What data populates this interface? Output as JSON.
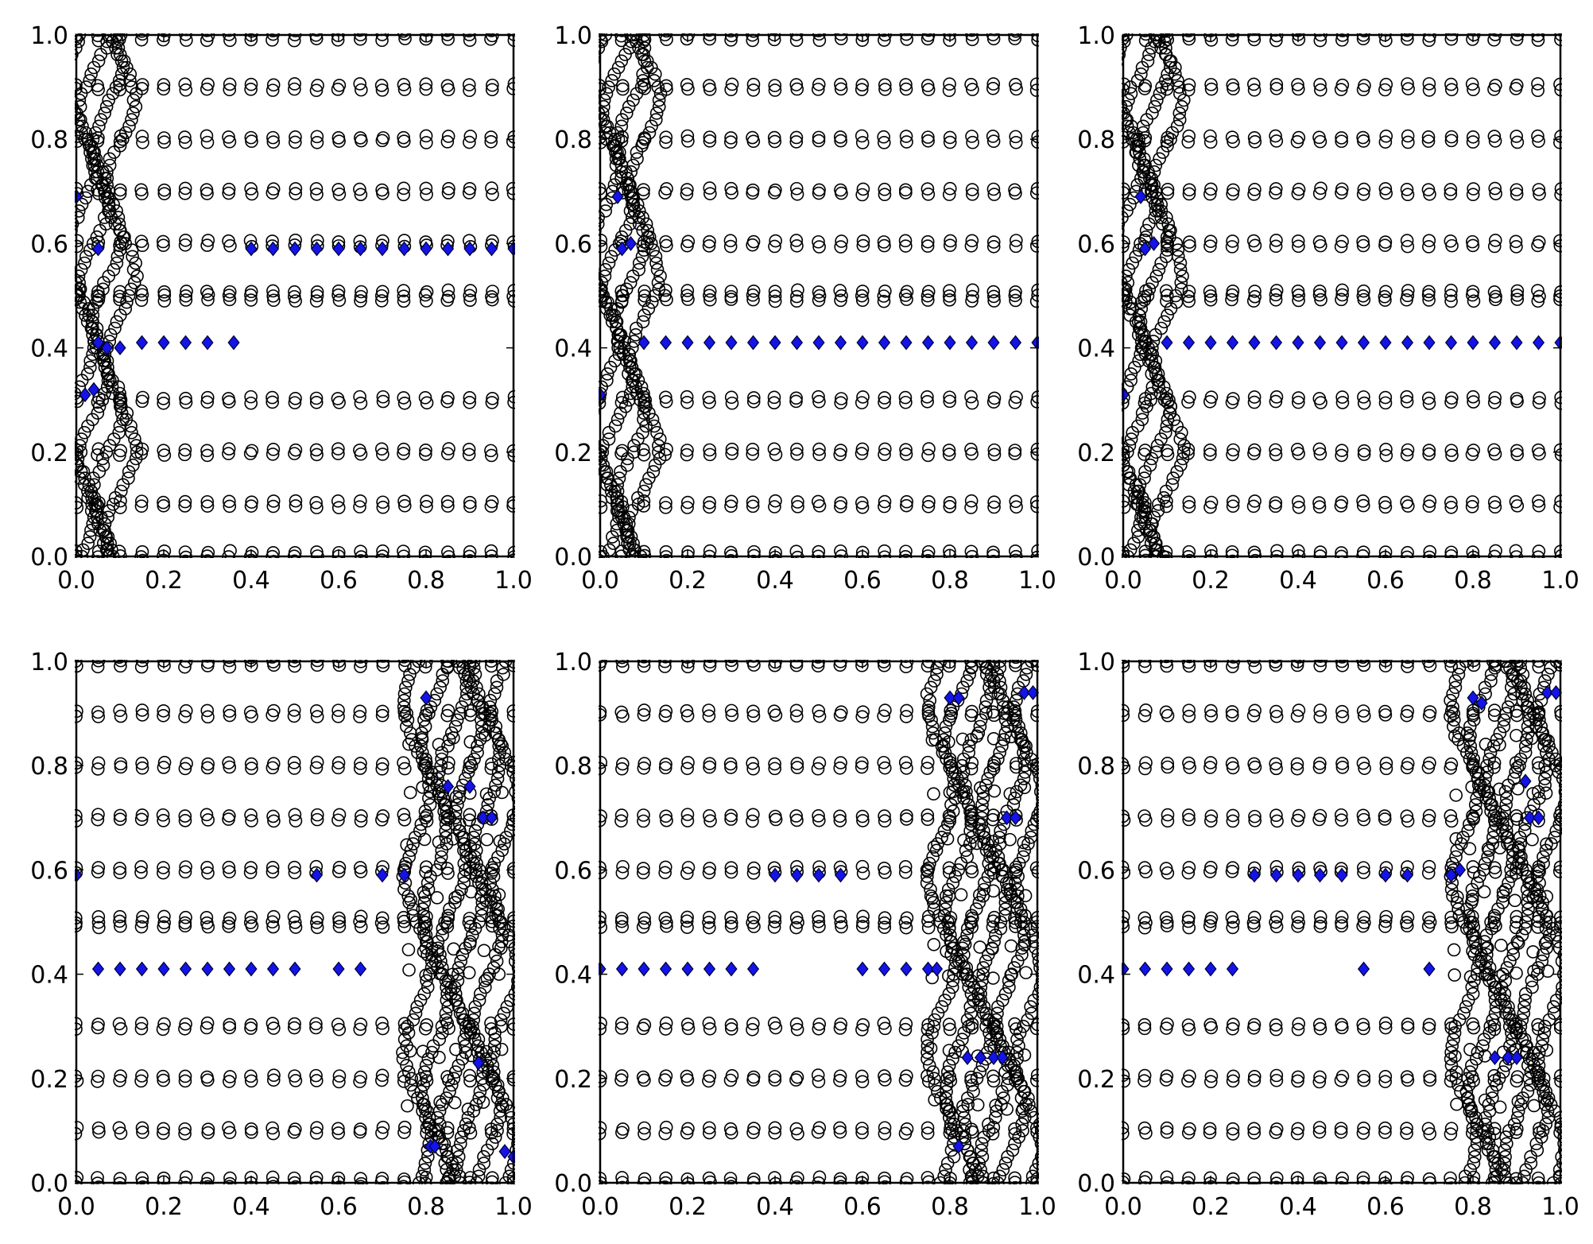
{
  "figure": {
    "layout": {
      "rows": 2,
      "cols": 3
    },
    "marker_styles": {
      "ring": "open-circle",
      "highlight": "diamond"
    },
    "colors": {
      "axes": "#000000",
      "ring_edge": "#000000",
      "highlight_fill": "#1414e6",
      "highlight_edge": "#000033",
      "background": "#ffffff"
    }
  },
  "chart_data": [
    {
      "type": "scatter",
      "title": "",
      "xlabel": "",
      "ylabel": "",
      "xlim": [
        0,
        1
      ],
      "ylim": [
        0,
        1
      ],
      "grid": false,
      "legend": "none",
      "x_ticks": [
        "0.0",
        "0.2",
        "0.4",
        "0.6",
        "0.8",
        "1.0"
      ],
      "y_ticks": [
        "0.0",
        "0.2",
        "0.4",
        "0.6",
        "0.8",
        "1.0"
      ],
      "circle_rows": [
        0.0,
        0.1,
        0.2,
        0.3,
        0.5,
        0.6,
        0.7,
        0.8,
        0.9,
        1.0
      ],
      "circle_dense_x": "left",
      "highlight_points": [
        [
          0.0,
          0.69
        ],
        [
          0.05,
          0.59
        ],
        [
          0.02,
          0.31
        ],
        [
          0.04,
          0.32
        ],
        [
          0.05,
          0.41
        ],
        [
          0.07,
          0.4
        ],
        [
          0.1,
          0.4
        ],
        [
          0.15,
          0.41
        ],
        [
          0.2,
          0.41
        ],
        [
          0.25,
          0.41
        ],
        [
          0.3,
          0.41
        ],
        [
          0.36,
          0.41
        ],
        [
          0.4,
          0.59
        ],
        [
          0.45,
          0.59
        ],
        [
          0.5,
          0.59
        ],
        [
          0.55,
          0.59
        ],
        [
          0.6,
          0.59
        ],
        [
          0.65,
          0.59
        ],
        [
          0.7,
          0.59
        ],
        [
          0.75,
          0.59
        ],
        [
          0.8,
          0.59
        ],
        [
          0.85,
          0.59
        ],
        [
          0.9,
          0.59
        ],
        [
          0.95,
          0.59
        ],
        [
          1.0,
          0.59
        ]
      ]
    },
    {
      "type": "scatter",
      "title": "",
      "xlabel": "",
      "ylabel": "",
      "xlim": [
        0,
        1
      ],
      "ylim": [
        0,
        1
      ],
      "grid": false,
      "legend": "none",
      "x_ticks": [
        "0.0",
        "0.2",
        "0.4",
        "0.6",
        "0.8",
        "1.0"
      ],
      "y_ticks": [
        "0.0",
        "0.2",
        "0.4",
        "0.6",
        "0.8",
        "1.0"
      ],
      "circle_rows": [
        0.0,
        0.1,
        0.2,
        0.3,
        0.5,
        0.6,
        0.7,
        0.8,
        0.9,
        1.0
      ],
      "circle_dense_x": "left",
      "highlight_points": [
        [
          0.0,
          0.31
        ],
        [
          0.04,
          0.69
        ],
        [
          0.05,
          0.59
        ],
        [
          0.07,
          0.6
        ],
        [
          0.1,
          0.41
        ],
        [
          0.15,
          0.41
        ],
        [
          0.2,
          0.41
        ],
        [
          0.25,
          0.41
        ],
        [
          0.3,
          0.41
        ],
        [
          0.35,
          0.41
        ],
        [
          0.4,
          0.41
        ],
        [
          0.45,
          0.41
        ],
        [
          0.5,
          0.41
        ],
        [
          0.55,
          0.41
        ],
        [
          0.6,
          0.41
        ],
        [
          0.65,
          0.41
        ],
        [
          0.7,
          0.41
        ],
        [
          0.75,
          0.41
        ],
        [
          0.8,
          0.41
        ],
        [
          0.85,
          0.41
        ],
        [
          0.9,
          0.41
        ],
        [
          0.95,
          0.41
        ],
        [
          1.0,
          0.41
        ]
      ]
    },
    {
      "type": "scatter",
      "title": "",
      "xlabel": "",
      "ylabel": "",
      "xlim": [
        0,
        1
      ],
      "ylim": [
        0,
        1
      ],
      "grid": false,
      "legend": "none",
      "x_ticks": [
        "0.0",
        "0.2",
        "0.4",
        "0.6",
        "0.8",
        "1.0"
      ],
      "y_ticks": [
        "0.0",
        "0.2",
        "0.4",
        "0.6",
        "0.8",
        "1.0"
      ],
      "circle_rows": [
        0.0,
        0.1,
        0.2,
        0.3,
        0.5,
        0.6,
        0.7,
        0.8,
        0.9,
        1.0
      ],
      "circle_dense_x": "left",
      "highlight_points": [
        [
          0.0,
          0.31
        ],
        [
          0.04,
          0.69
        ],
        [
          0.05,
          0.59
        ],
        [
          0.07,
          0.6
        ],
        [
          0.1,
          0.41
        ],
        [
          0.15,
          0.41
        ],
        [
          0.2,
          0.41
        ],
        [
          0.25,
          0.41
        ],
        [
          0.3,
          0.41
        ],
        [
          0.35,
          0.41
        ],
        [
          0.4,
          0.41
        ],
        [
          0.45,
          0.41
        ],
        [
          0.5,
          0.41
        ],
        [
          0.55,
          0.41
        ],
        [
          0.6,
          0.41
        ],
        [
          0.65,
          0.41
        ],
        [
          0.7,
          0.41
        ],
        [
          0.75,
          0.41
        ],
        [
          0.8,
          0.41
        ],
        [
          0.85,
          0.41
        ],
        [
          0.9,
          0.41
        ],
        [
          0.95,
          0.41
        ],
        [
          1.0,
          0.41
        ]
      ]
    },
    {
      "type": "scatter",
      "title": "",
      "xlabel": "",
      "ylabel": "",
      "xlim": [
        0,
        1
      ],
      "ylim": [
        0,
        1
      ],
      "grid": false,
      "legend": "none",
      "x_ticks": [
        "0.0",
        "0.2",
        "0.4",
        "0.6",
        "0.8",
        "1.0"
      ],
      "y_ticks": [
        "0.0",
        "0.2",
        "0.4",
        "0.6",
        "0.8",
        "1.0"
      ],
      "circle_rows": [
        0.0,
        0.1,
        0.2,
        0.3,
        0.5,
        0.6,
        0.7,
        0.8,
        0.9,
        1.0
      ],
      "circle_dense_x": "right",
      "highlight_points": [
        [
          0.0,
          0.59
        ],
        [
          0.05,
          0.41
        ],
        [
          0.1,
          0.41
        ],
        [
          0.15,
          0.41
        ],
        [
          0.2,
          0.41
        ],
        [
          0.25,
          0.41
        ],
        [
          0.3,
          0.41
        ],
        [
          0.35,
          0.41
        ],
        [
          0.4,
          0.41
        ],
        [
          0.45,
          0.41
        ],
        [
          0.5,
          0.41
        ],
        [
          0.55,
          0.59
        ],
        [
          0.6,
          0.41
        ],
        [
          0.65,
          0.41
        ],
        [
          0.7,
          0.59
        ],
        [
          0.75,
          0.59
        ],
        [
          0.8,
          0.93
        ],
        [
          0.85,
          0.76
        ],
        [
          0.9,
          0.76
        ],
        [
          0.93,
          0.7
        ],
        [
          0.95,
          0.7
        ],
        [
          0.92,
          0.23
        ],
        [
          0.81,
          0.07
        ],
        [
          0.82,
          0.07
        ],
        [
          0.98,
          0.06
        ],
        [
          1.0,
          0.05
        ]
      ]
    },
    {
      "type": "scatter",
      "title": "",
      "xlabel": "",
      "ylabel": "",
      "xlim": [
        0,
        1
      ],
      "ylim": [
        0,
        1
      ],
      "grid": false,
      "legend": "none",
      "x_ticks": [
        "0.0",
        "0.2",
        "0.4",
        "0.6",
        "0.8",
        "1.0"
      ],
      "y_ticks": [
        "0.0",
        "0.2",
        "0.4",
        "0.6",
        "0.8",
        "1.0"
      ],
      "circle_rows": [
        0.0,
        0.1,
        0.2,
        0.3,
        0.5,
        0.6,
        0.7,
        0.8,
        0.9,
        1.0
      ],
      "circle_dense_x": "right",
      "highlight_points": [
        [
          0.0,
          0.41
        ],
        [
          0.05,
          0.41
        ],
        [
          0.1,
          0.41
        ],
        [
          0.15,
          0.41
        ],
        [
          0.2,
          0.41
        ],
        [
          0.25,
          0.41
        ],
        [
          0.3,
          0.41
        ],
        [
          0.35,
          0.41
        ],
        [
          0.4,
          0.59
        ],
        [
          0.45,
          0.59
        ],
        [
          0.5,
          0.59
        ],
        [
          0.55,
          0.59
        ],
        [
          0.6,
          0.41
        ],
        [
          0.65,
          0.41
        ],
        [
          0.7,
          0.41
        ],
        [
          0.75,
          0.41
        ],
        [
          0.77,
          0.41
        ],
        [
          0.8,
          0.93
        ],
        [
          0.82,
          0.93
        ],
        [
          0.97,
          0.94
        ],
        [
          0.99,
          0.94
        ],
        [
          0.93,
          0.7
        ],
        [
          0.95,
          0.7
        ],
        [
          0.84,
          0.24
        ],
        [
          0.87,
          0.24
        ],
        [
          0.9,
          0.24
        ],
        [
          0.92,
          0.24
        ],
        [
          0.82,
          0.07
        ]
      ]
    },
    {
      "type": "scatter",
      "title": "",
      "xlabel": "",
      "ylabel": "",
      "xlim": [
        0,
        1
      ],
      "ylim": [
        0,
        1
      ],
      "grid": false,
      "legend": "none",
      "x_ticks": [
        "0.0",
        "0.2",
        "0.4",
        "0.6",
        "0.8",
        "1.0"
      ],
      "y_ticks": [
        "0.0",
        "0.2",
        "0.4",
        "0.6",
        "0.8",
        "1.0"
      ],
      "circle_rows": [
        0.0,
        0.1,
        0.2,
        0.3,
        0.5,
        0.6,
        0.7,
        0.8,
        0.9,
        1.0
      ],
      "circle_dense_x": "right",
      "highlight_points": [
        [
          0.0,
          0.41
        ],
        [
          0.05,
          0.41
        ],
        [
          0.1,
          0.41
        ],
        [
          0.15,
          0.41
        ],
        [
          0.2,
          0.41
        ],
        [
          0.25,
          0.41
        ],
        [
          0.3,
          0.59
        ],
        [
          0.35,
          0.59
        ],
        [
          0.4,
          0.59
        ],
        [
          0.45,
          0.59
        ],
        [
          0.5,
          0.59
        ],
        [
          0.55,
          0.41
        ],
        [
          0.6,
          0.59
        ],
        [
          0.65,
          0.59
        ],
        [
          0.7,
          0.41
        ],
        [
          0.75,
          0.59
        ],
        [
          0.77,
          0.6
        ],
        [
          0.8,
          0.93
        ],
        [
          0.82,
          0.92
        ],
        [
          0.97,
          0.94
        ],
        [
          0.99,
          0.94
        ],
        [
          0.92,
          0.77
        ],
        [
          0.93,
          0.7
        ],
        [
          0.95,
          0.7
        ],
        [
          0.85,
          0.24
        ],
        [
          0.88,
          0.24
        ],
        [
          0.9,
          0.24
        ]
      ]
    }
  ]
}
